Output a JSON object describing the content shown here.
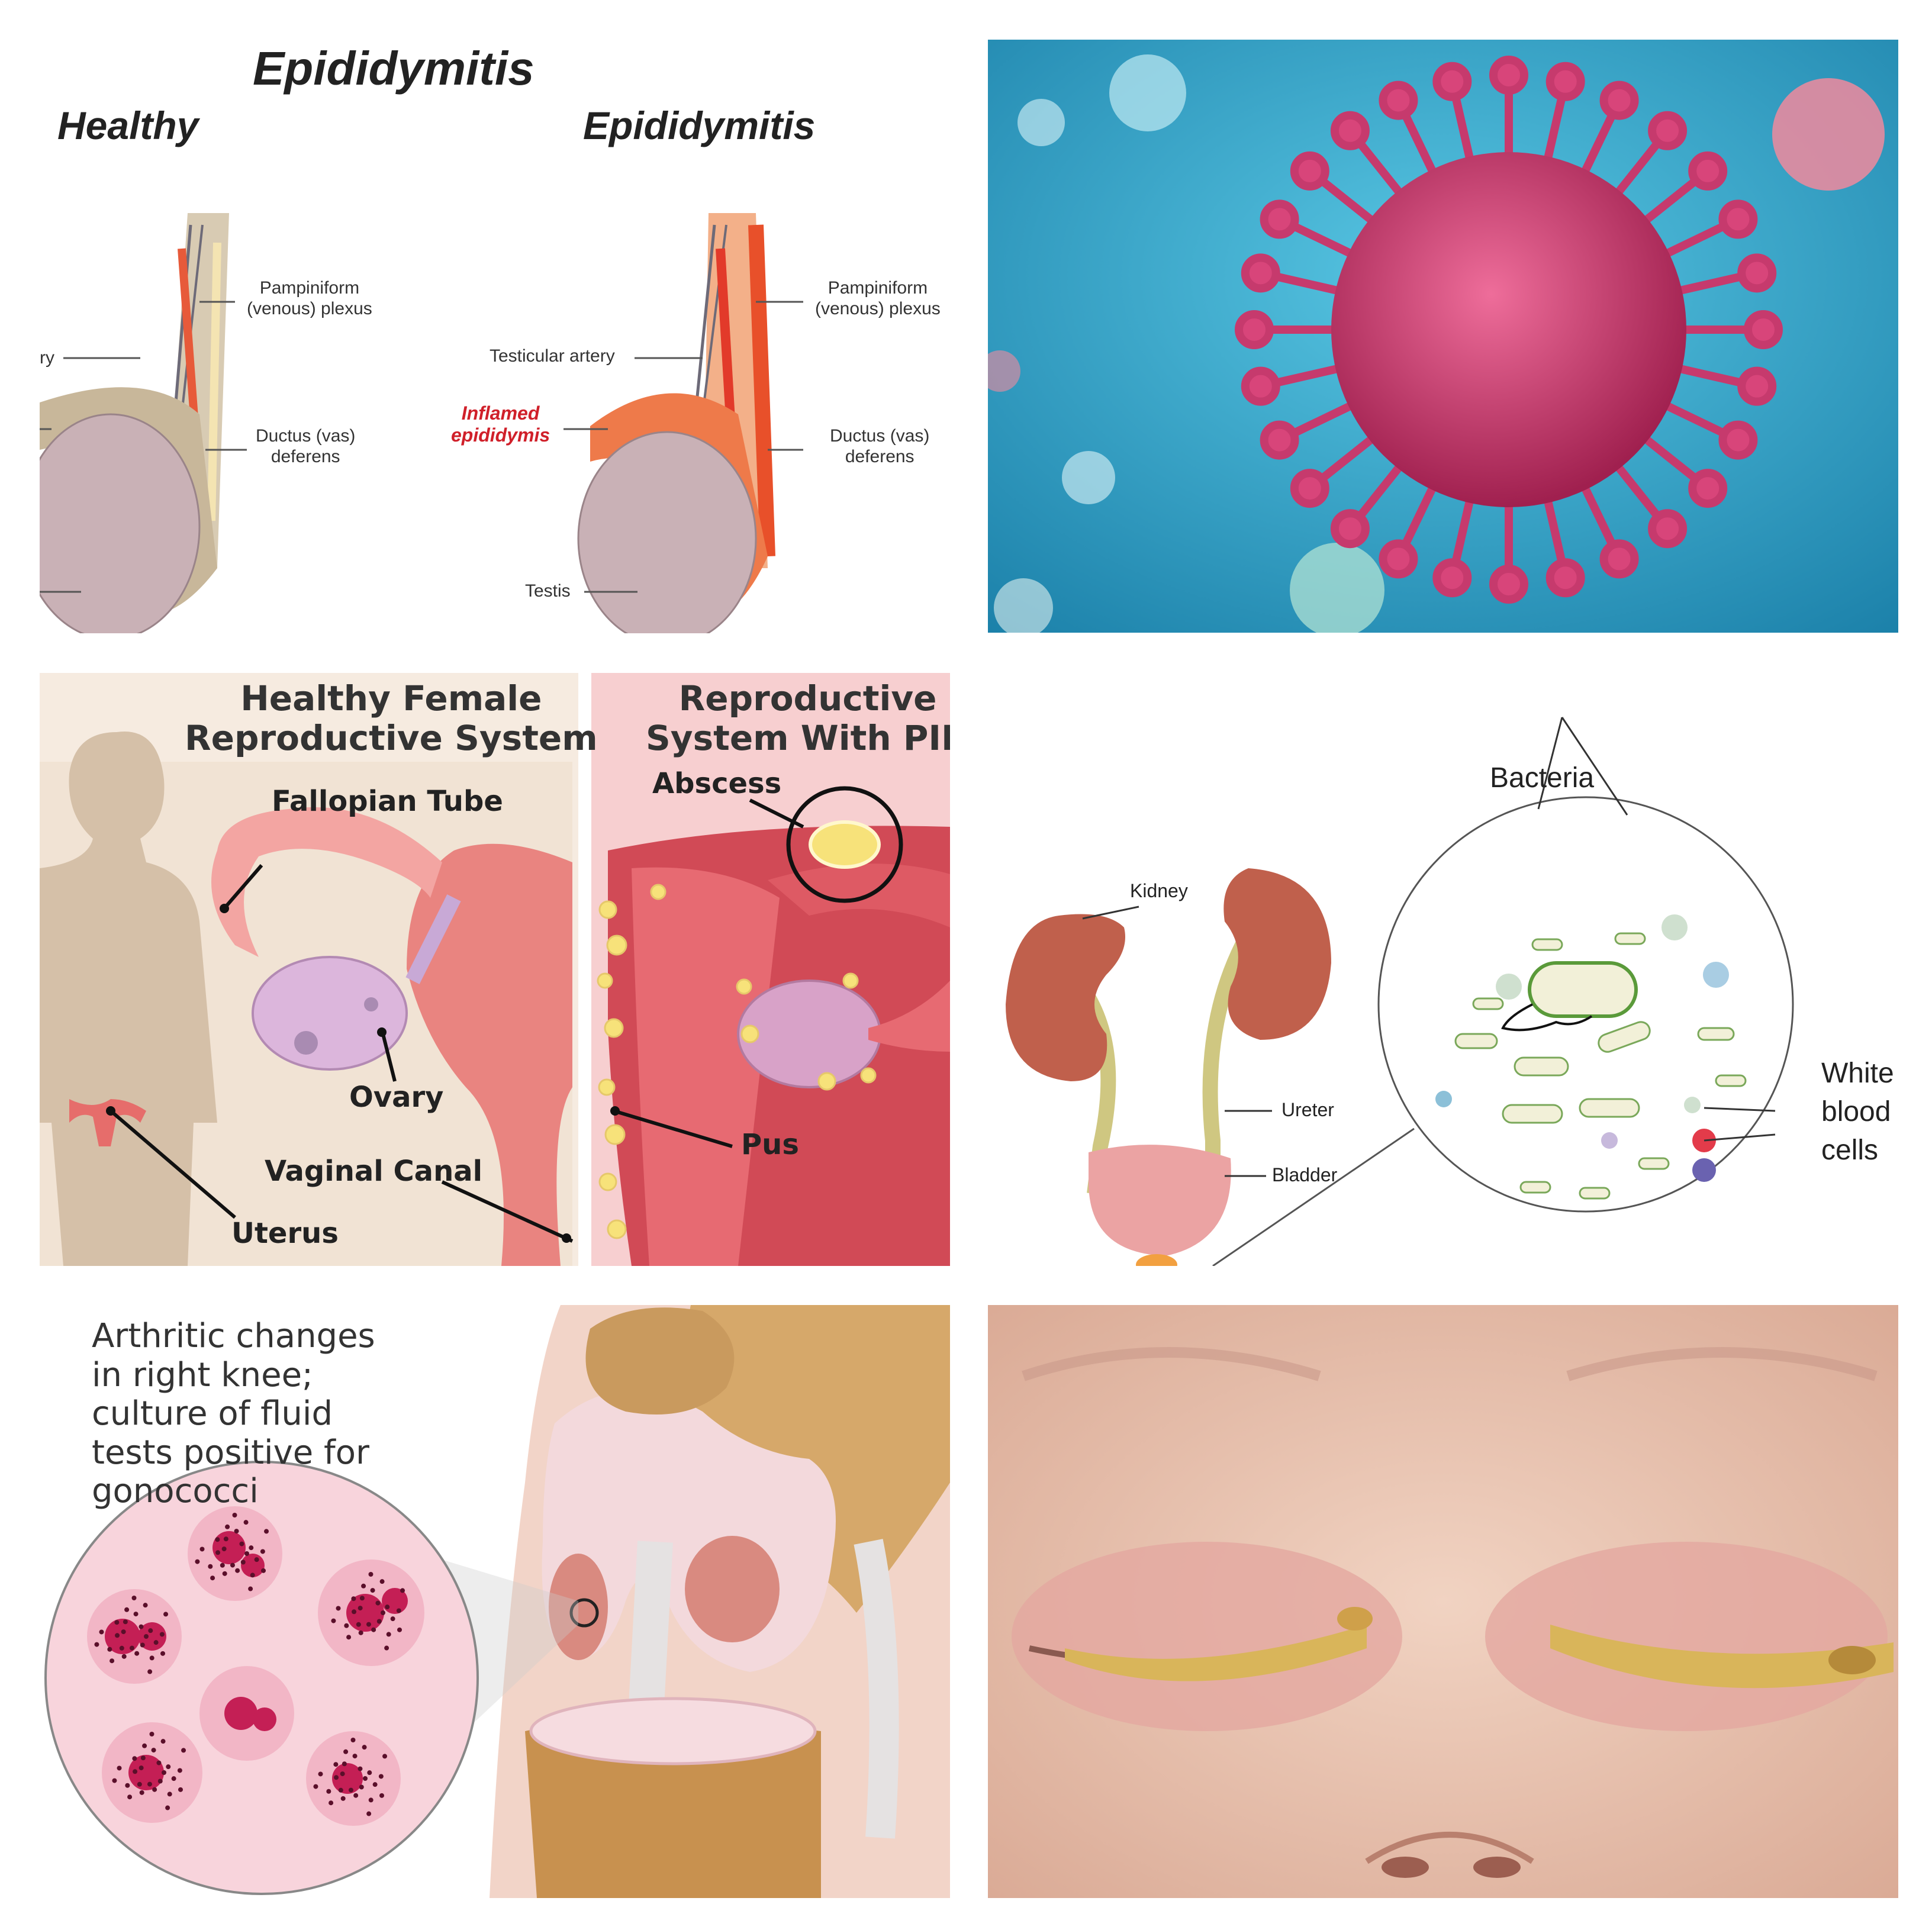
{
  "epididymitis": {
    "title": "Epididymitis",
    "healthy_heading": "Healthy",
    "condition_heading": "Epididymitis",
    "left_labels": {
      "pampiniform_1": "Pampiniform",
      "pampiniform_2": "(venous) plexus",
      "artery_fragment": "ry",
      "ductus_1": "Ductus (vas)",
      "ductus_2": "deferens"
    },
    "right_labels": {
      "pampiniform_1": "Pampiniform",
      "pampiniform_2": "(venous) plexus",
      "testicular_artery": "Testicular artery",
      "inflamed_1": "Inflamed",
      "inflamed_2": "epididymis",
      "ductus_1": "Ductus (vas)",
      "ductus_2": "deferens",
      "testis": "Testis"
    },
    "colors": {
      "inflamed_label": "#d0202a",
      "healthy_tissue": "#c8b79a",
      "inflamed_tissue": "#ee7a4a",
      "testis": "#c9b1b6"
    }
  },
  "virus": {
    "colors": {
      "background": "#2a9fc4",
      "virus_body": "#d8457a"
    }
  },
  "pid": {
    "left_heading_1": "Healthy Female",
    "left_heading_2": "Reproductive System",
    "right_heading_1": "Reproductive",
    "right_heading_2": "System With PID",
    "labels": {
      "fallopian_tube": "Fallopian Tube",
      "ovary": "Ovary",
      "vaginal_canal": "Vaginal Canal",
      "uterus": "Uterus",
      "abscess": "Abscess",
      "pus": "Pus"
    },
    "colors": {
      "left_bg": "#f6ebe0",
      "right_bg": "#f7cfd0",
      "uterus": "#e9847f",
      "ovary": "#dcb6dc",
      "pus": "#f7e27a"
    }
  },
  "urinary": {
    "labels": {
      "bacteria": "Bacteria",
      "kidney": "Kidney",
      "ureter": "Ureter",
      "bladder": "Bladder",
      "wbc_1": "White",
      "wbc_2": "blood",
      "wbc_3": "cells"
    },
    "colors": {
      "kidney": "#c0604c",
      "ureter": "#d8d18c",
      "bladder": "#eba3a3"
    }
  },
  "knee": {
    "caption": [
      "Arthritic changes",
      "in right knee;",
      "culture of fluid",
      "tests positive for",
      "gonococci"
    ],
    "colors": {
      "bone": "#d6a86a",
      "cartilage": "#f3d9dc",
      "cells": "#d23a6a"
    }
  },
  "infant": {
    "colors": {
      "skin": "#e8c2ae",
      "crust": "#d9b55a"
    }
  }
}
